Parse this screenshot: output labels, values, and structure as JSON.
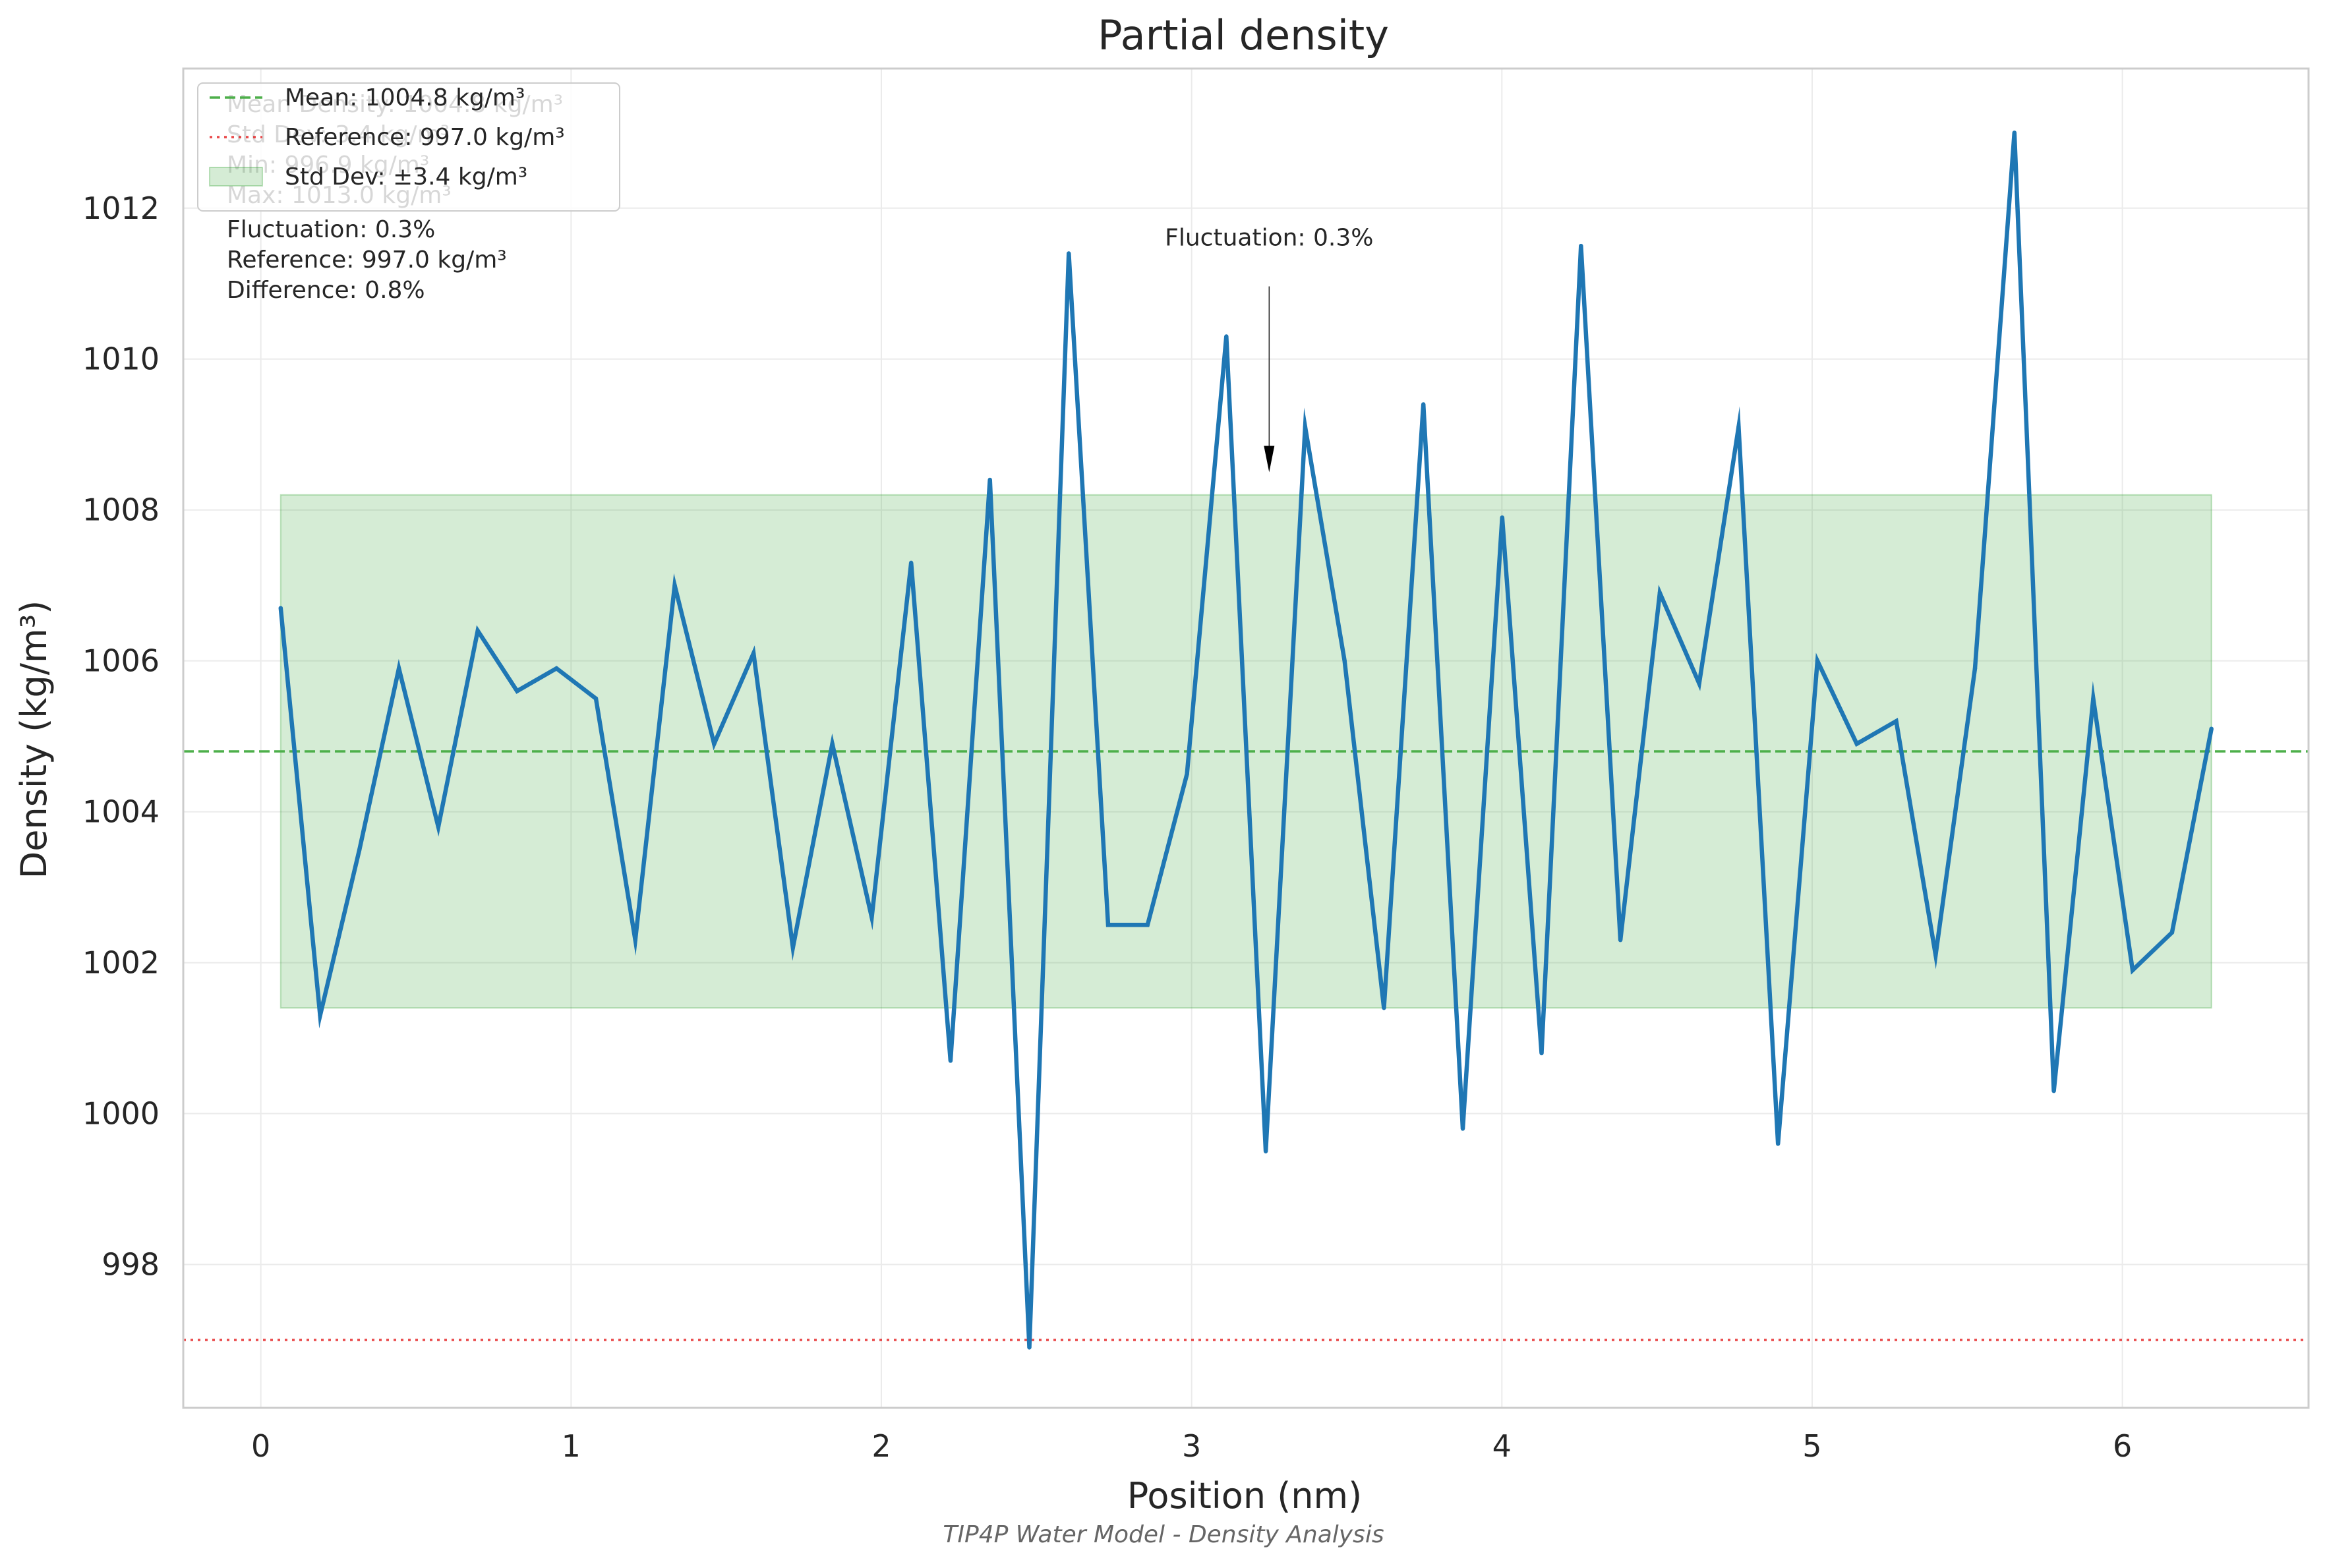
{
  "chart_data": {
    "type": "line",
    "title": "Partial density",
    "xlabel": "Position (nm)",
    "ylabel": "Density (kg/m³)",
    "caption": "TIP4P Water Model - Density Analysis",
    "xlim": [
      -0.25,
      6.6
    ],
    "ylim": [
      996.1,
      1013.85
    ],
    "x_ticks": [
      0,
      1,
      2,
      3,
      4,
      5,
      6
    ],
    "y_ticks": [
      998,
      1000,
      1002,
      1004,
      1006,
      1008,
      1010,
      1012
    ],
    "grid": true,
    "legend_position": "upper-left",
    "series": [
      {
        "color": "#1f77b4",
        "x": [
          0.064,
          0.191,
          0.318,
          0.445,
          0.572,
          0.699,
          0.826,
          0.953,
          1.08,
          1.207,
          1.334,
          1.461,
          1.588,
          1.715,
          1.842,
          1.969,
          2.096,
          2.223,
          2.35,
          2.477,
          2.604,
          2.731,
          2.858,
          2.985,
          3.112,
          3.239,
          3.366,
          3.493,
          3.62,
          3.747,
          3.874,
          4.001,
          4.128,
          4.255,
          4.382,
          4.509,
          4.636,
          4.763,
          4.89,
          5.017,
          5.144,
          5.271,
          5.398,
          5.525,
          5.652,
          5.779,
          5.906,
          6.033,
          6.16,
          6.287
        ],
        "y": [
          1006.7,
          1001.3,
          1003.5,
          1005.9,
          1003.8,
          1006.4,
          1005.6,
          1005.9,
          1005.5,
          1002.3,
          1007.0,
          1004.9,
          1006.1,
          1002.2,
          1004.9,
          1002.6,
          1007.3,
          1000.7,
          1008.4,
          996.9,
          1011.4,
          1002.5,
          1002.5,
          1004.5,
          1010.3,
          999.5,
          1009.1,
          1006.0,
          1001.4,
          1009.4,
          999.8,
          1007.9,
          1000.8,
          1011.5,
          1002.3,
          1006.9,
          1005.7,
          1009.1,
          999.6,
          1006.0,
          1004.9,
          1005.2,
          1002.1,
          1005.9,
          1013.0,
          1000.3,
          1005.5,
          1001.9,
          1002.4,
          1005.1
        ]
      }
    ],
    "mean": 1004.8,
    "mean_color": "#4daf4a",
    "reference": 997.0,
    "reference_color": "#e41a1c",
    "std_band": [
      1001.4,
      1008.2
    ],
    "std_band_x": [
      0.064,
      6.287
    ],
    "band_color": "#2ca02c",
    "legend": [
      {
        "label": "Mean: 1004.8 kg/m³",
        "style": "dashed",
        "color": "#4daf4a"
      },
      {
        "label": "Reference: 997.0 kg/m³",
        "style": "dotted",
        "color": "#e41a1c"
      },
      {
        "label": "Std Dev: ±3.4 kg/m³",
        "style": "patch",
        "color": "#2ca02c"
      }
    ],
    "stats_hidden": [
      "Mean Density: 1004.8 kg/m³",
      "Std Dev: 3.4 kg/m³",
      "Min: 996.9 kg/m³",
      "Max: 1013.0 kg/m³"
    ],
    "stats_visible": [
      "Fluctuation: 0.3%",
      "Reference: 997.0 kg/m³",
      "Difference: 0.8%"
    ],
    "annotation": {
      "text": "Fluctuation: 0.3%",
      "point": [
        3.25,
        1008.5
      ],
      "text_pos": [
        3.25,
        1011.4
      ]
    }
  }
}
